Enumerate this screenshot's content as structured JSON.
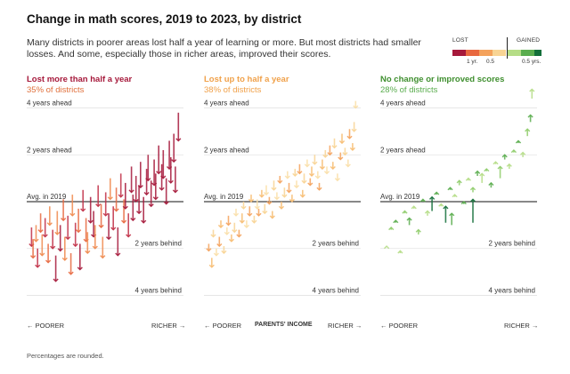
{
  "title": "Change in math scores, 2019 to 2023, by district",
  "subtitle": "Many districts in poorer areas lost half a year of learning or more. But most districts had smaller losses. And some, especially those in richer areas, improved their scores.",
  "legend": {
    "lost_label": "LOST",
    "gained_label": "GAINED",
    "ticks": [
      "1 yr.",
      "0.5",
      "0.5 yrs."
    ],
    "colors": [
      "#a6193b",
      "#e8683f",
      "#f4a25c",
      "#f8d494",
      "#b5dd86",
      "#5aad4e",
      "#136f3a"
    ]
  },
  "axis": {
    "poorer": "← POORER",
    "richer": "RICHER →",
    "middle": "PARENTS' INCOME"
  },
  "footnote": "Percentages are rounded.",
  "chart_data": [
    {
      "type": "scatter",
      "title": "Lost more than half a year",
      "subtitle": "35% of districts",
      "title_color": "#a6193b",
      "subtitle_color": "#e0703c",
      "reference_labels": [
        "4 years ahead",
        "2 years ahead",
        "Avg. in 2019",
        "2 years behind",
        "4 years behind"
      ],
      "ylim": [
        -4.4,
        4.4
      ],
      "series": [
        {
          "values": [
            [
              0.02,
              -1.1,
              -1.9
            ],
            [
              0.03,
              -1.6,
              -2.4
            ],
            [
              0.05,
              -1.0,
              -1.7
            ],
            [
              0.06,
              -2.0,
              -2.8
            ],
            [
              0.08,
              -0.5,
              -1.3
            ],
            [
              0.09,
              -1.4,
              -2.3
            ],
            [
              0.11,
              -0.7,
              -1.5
            ],
            [
              0.13,
              -1.8,
              -2.6
            ],
            [
              0.14,
              -0.2,
              -1.0
            ],
            [
              0.16,
              -1.2,
              -2.0
            ],
            [
              0.18,
              -2.3,
              -3.4
            ],
            [
              0.19,
              -0.4,
              -1.4
            ],
            [
              0.21,
              -1.0,
              -2.1
            ],
            [
              0.23,
              0.1,
              -0.8
            ],
            [
              0.24,
              -1.5,
              -2.5
            ],
            [
              0.26,
              -0.6,
              -1.6
            ],
            [
              0.28,
              -2.2,
              -3.1
            ],
            [
              0.29,
              0.3,
              -0.6
            ],
            [
              0.31,
              -0.9,
              -1.9
            ],
            [
              0.33,
              -0.3,
              -1.3
            ],
            [
              0.34,
              -1.8,
              -2.9
            ],
            [
              0.36,
              0.5,
              -0.4
            ],
            [
              0.38,
              -0.7,
              -1.7
            ],
            [
              0.39,
              -1.3,
              -2.2
            ],
            [
              0.41,
              0.2,
              -0.9
            ],
            [
              0.43,
              -0.4,
              -1.5
            ],
            [
              0.44,
              -1.0,
              -2.0
            ],
            [
              0.46,
              0.7,
              -0.2
            ],
            [
              0.48,
              -0.1,
              -1.1
            ],
            [
              0.49,
              -1.5,
              -2.4
            ],
            [
              0.51,
              0.4,
              -0.6
            ],
            [
              0.53,
              -0.5,
              -1.6
            ],
            [
              0.54,
              1.0,
              0.1
            ],
            [
              0.56,
              -0.2,
              -1.2
            ],
            [
              0.58,
              0.6,
              -0.4
            ],
            [
              0.59,
              -1.1,
              -2.3
            ],
            [
              0.61,
              1.2,
              0.2
            ],
            [
              0.63,
              0.1,
              -0.9
            ],
            [
              0.64,
              0.8,
              -0.3
            ],
            [
              0.66,
              -0.5,
              -1.5
            ],
            [
              0.68,
              1.5,
              0.4
            ],
            [
              0.69,
              0.3,
              -0.8
            ],
            [
              0.71,
              1.1,
              0.0
            ],
            [
              0.73,
              0.7,
              -0.5
            ],
            [
              0.74,
              1.7,
              0.6
            ],
            [
              0.76,
              0.2,
              -0.9
            ],
            [
              0.78,
              1.4,
              0.3
            ],
            [
              0.79,
              2.0,
              0.9
            ],
            [
              0.81,
              0.9,
              -0.2
            ],
            [
              0.83,
              1.8,
              0.7
            ],
            [
              0.84,
              1.2,
              0.1
            ],
            [
              0.86,
              2.4,
              1.2
            ],
            [
              0.88,
              1.6,
              0.5
            ],
            [
              0.89,
              2.2,
              1.0
            ],
            [
              0.91,
              1.0,
              -0.1
            ],
            [
              0.93,
              2.6,
              1.4
            ],
            [
              0.94,
              1.9,
              0.8
            ],
            [
              0.96,
              2.9,
              1.7
            ],
            [
              0.97,
              1.5,
              0.4
            ],
            [
              0.99,
              3.8,
              2.6
            ]
          ]
        }
      ]
    },
    {
      "type": "scatter",
      "title": "Lost up to half a year",
      "subtitle": "38% of districts",
      "title_color": "#f0a14a",
      "subtitle_color": "#f0a14a",
      "reference_labels": [
        "4 years ahead",
        "2 years ahead",
        "Avg. in 2019",
        "2 years behind",
        "4 years behind"
      ],
      "ylim": [
        -4.4,
        4.4
      ],
      "series": [
        {
          "values": [
            [
              0.02,
              -1.8,
              -2.1
            ],
            [
              0.04,
              -2.4,
              -2.8
            ],
            [
              0.05,
              -1.2,
              -1.5
            ],
            [
              0.07,
              -2.0,
              -2.3
            ],
            [
              0.09,
              -1.5,
              -1.9
            ],
            [
              0.1,
              -0.8,
              -1.1
            ],
            [
              0.12,
              -1.9,
              -2.2
            ],
            [
              0.14,
              -1.1,
              -1.4
            ],
            [
              0.15,
              -0.6,
              -1.0
            ],
            [
              0.17,
              -1.4,
              -1.7
            ],
            [
              0.19,
              -0.9,
              -1.3
            ],
            [
              0.2,
              -0.3,
              -0.6
            ],
            [
              0.22,
              -1.2,
              -1.5
            ],
            [
              0.24,
              -0.5,
              -0.9
            ],
            [
              0.25,
              0.0,
              -0.3
            ],
            [
              0.27,
              -0.8,
              -1.1
            ],
            [
              0.29,
              -0.2,
              -0.6
            ],
            [
              0.3,
              0.3,
              0.0
            ],
            [
              0.32,
              -0.6,
              -0.9
            ],
            [
              0.34,
              0.1,
              -0.3
            ],
            [
              0.35,
              -0.3,
              -0.6
            ],
            [
              0.37,
              0.5,
              0.2
            ],
            [
              0.39,
              -0.1,
              -0.5
            ],
            [
              0.4,
              0.7,
              0.3
            ],
            [
              0.42,
              0.2,
              -0.1
            ],
            [
              0.44,
              -0.4,
              -0.7
            ],
            [
              0.45,
              0.9,
              0.5
            ],
            [
              0.47,
              0.4,
              0.1
            ],
            [
              0.49,
              1.1,
              0.8
            ],
            [
              0.5,
              0.0,
              -0.3
            ],
            [
              0.52,
              0.6,
              0.2
            ],
            [
              0.54,
              1.3,
              1.0
            ],
            [
              0.55,
              0.8,
              0.4
            ],
            [
              0.57,
              0.3,
              0.0
            ],
            [
              0.59,
              1.4,
              1.1
            ],
            [
              0.6,
              0.9,
              0.6
            ],
            [
              0.62,
              1.6,
              1.2
            ],
            [
              0.64,
              0.5,
              0.2
            ],
            [
              0.65,
              1.2,
              0.8
            ],
            [
              0.67,
              1.8,
              1.5
            ],
            [
              0.69,
              1.0,
              0.7
            ],
            [
              0.7,
              1.5,
              1.1
            ],
            [
              0.72,
              2.0,
              1.6
            ],
            [
              0.74,
              1.3,
              1.0
            ],
            [
              0.75,
              0.8,
              0.5
            ],
            [
              0.77,
              1.8,
              1.4
            ],
            [
              0.79,
              2.2,
              1.9
            ],
            [
              0.8,
              1.5,
              1.2
            ],
            [
              0.82,
              2.4,
              2.0
            ],
            [
              0.84,
              1.7,
              1.4
            ],
            [
              0.85,
              2.7,
              2.3
            ],
            [
              0.87,
              1.2,
              0.9
            ],
            [
              0.89,
              2.1,
              1.8
            ],
            [
              0.9,
              2.9,
              2.5
            ],
            [
              0.92,
              2.3,
              2.0
            ],
            [
              0.94,
              1.8,
              1.5
            ],
            [
              0.95,
              3.1,
              2.7
            ],
            [
              0.97,
              2.5,
              2.2
            ],
            [
              0.98,
              3.4,
              3.0
            ],
            [
              0.99,
              4.3,
              4.0
            ]
          ]
        }
      ]
    },
    {
      "type": "scatter",
      "title": "No change or improved scores",
      "subtitle": "28% of districts",
      "title_color": "#3f8f2f",
      "subtitle_color": "#5aad4e",
      "reference_labels": [
        "4 years ahead",
        "2 years ahead",
        "Avg. in 2019",
        "2 years behind",
        "4 years behind"
      ],
      "ylim": [
        -4.4,
        4.4
      ],
      "series": [
        {
          "values": [
            [
              0.03,
              -1.9,
              -1.9
            ],
            [
              0.06,
              -1.2,
              -1.1
            ],
            [
              0.09,
              -0.9,
              -0.8
            ],
            [
              0.12,
              -2.2,
              -2.1
            ],
            [
              0.15,
              -0.5,
              -0.4
            ],
            [
              0.18,
              -1.0,
              -0.7
            ],
            [
              0.21,
              -0.3,
              -0.2
            ],
            [
              0.24,
              -1.4,
              -1.2
            ],
            [
              0.27,
              0.0,
              0.1
            ],
            [
              0.3,
              -0.6,
              -0.4
            ],
            [
              0.33,
              -0.4,
              0.2
            ],
            [
              0.36,
              0.3,
              0.4
            ],
            [
              0.39,
              -0.2,
              -0.1
            ],
            [
              0.42,
              -0.9,
              -0.2
            ],
            [
              0.45,
              0.5,
              0.6
            ],
            [
              0.48,
              0.2,
              0.3
            ],
            [
              0.51,
              0.7,
              0.9
            ],
            [
              0.54,
              -0.1,
              0.0
            ],
            [
              0.57,
              0.9,
              1.0
            ],
            [
              0.6,
              0.4,
              0.6
            ],
            [
              0.63,
              1.1,
              1.3
            ],
            [
              0.66,
              0.8,
              1.2
            ],
            [
              0.69,
              1.3,
              1.4
            ],
            [
              0.72,
              0.6,
              0.8
            ],
            [
              0.75,
              1.6,
              1.7
            ],
            [
              0.78,
              1.0,
              1.5
            ],
            [
              0.81,
              1.8,
              2.0
            ],
            [
              0.84,
              1.4,
              1.6
            ],
            [
              0.87,
              2.1,
              2.2
            ],
            [
              0.9,
              2.5,
              2.6
            ],
            [
              0.93,
              1.9,
              2.1
            ],
            [
              0.96,
              2.8,
              3.1
            ],
            [
              0.98,
              3.4,
              3.7
            ],
            [
              0.99,
              4.4,
              4.8
            ],
            [
              0.6,
              -0.9,
              0.1
            ],
            [
              0.46,
              -1.0,
              -0.5
            ]
          ]
        }
      ]
    }
  ]
}
